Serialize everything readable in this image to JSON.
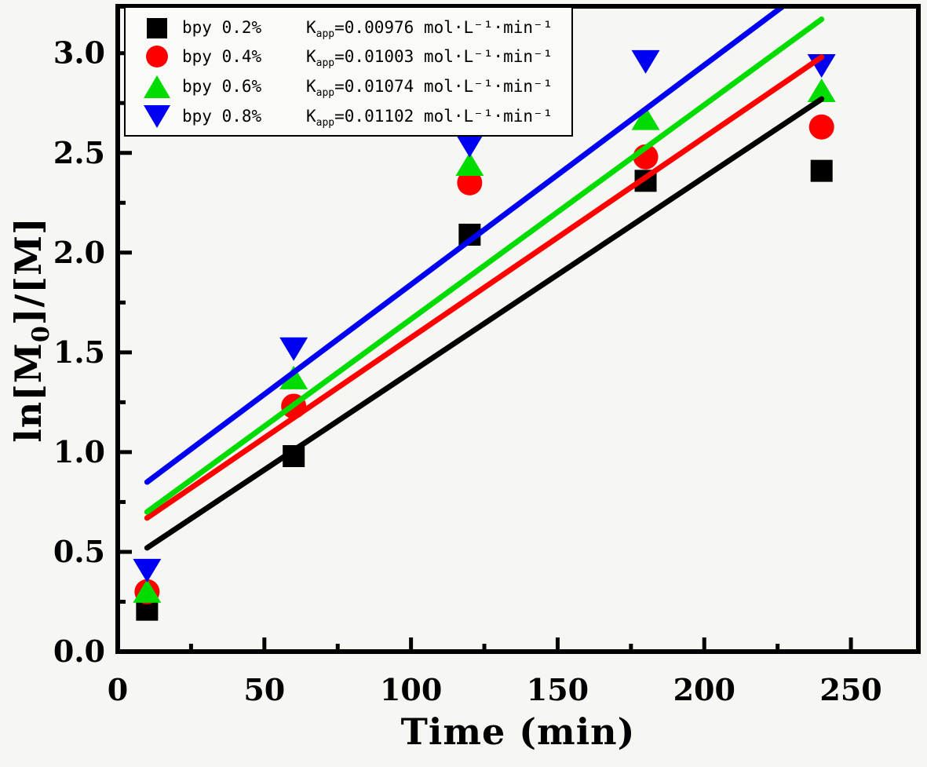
{
  "page": {
    "background": "#f6f6f3",
    "frame_color": "#000000"
  },
  "axes": {
    "x_title": "Time (min)",
    "y_title_pre": "ln[M",
    "y_title_sub": "0",
    "y_title_post": "]/[M]",
    "x_tick_labels": [
      "0",
      "50",
      "100",
      "150",
      "200",
      "250"
    ],
    "y_tick_labels": [
      "0.0",
      "0.5",
      "1.0",
      "1.5",
      "2.0",
      "2.5",
      "3.0"
    ]
  },
  "chart_data": {
    "type": "scatter",
    "title": "",
    "xlabel": "Time (min)",
    "ylabel": "ln[M0]/[M]",
    "xlim": [
      0,
      273
    ],
    "ylim": [
      0,
      3.235
    ],
    "grid": false,
    "legend_position": "top-left",
    "x_ticks_major": [
      0,
      50,
      100,
      150,
      200,
      250
    ],
    "x_ticks_minor": [
      25,
      75,
      125,
      175,
      225
    ],
    "y_ticks_major": [
      0,
      0.5,
      1.0,
      1.5,
      2.0,
      2.5,
      3.0
    ],
    "y_ticks_minor": [
      0.25,
      0.75,
      1.25,
      1.75,
      2.25,
      2.75
    ],
    "x": [
      10,
      60,
      120,
      180,
      240
    ],
    "series": [
      {
        "name": "bpy 0.2%",
        "marker": "square",
        "color": "#000000",
        "values": [
          0.21,
          0.98,
          2.09,
          2.36,
          2.41
        ],
        "kapp": "0.00976",
        "fit_line": {
          "x1": 10,
          "y1": 0.52,
          "x2": 240,
          "y2": 2.77
        }
      },
      {
        "name": "bpy 0.4%",
        "marker": "circle",
        "color": "#ff0000",
        "values": [
          0.3,
          1.23,
          2.35,
          2.48,
          2.63
        ],
        "kapp": "0.01003",
        "fit_line": {
          "x1": 10,
          "y1": 0.67,
          "x2": 240,
          "y2": 2.98
        }
      },
      {
        "name": "bpy 0.6%",
        "marker": "triangle-up",
        "color": "#00dc00",
        "values": [
          0.3,
          1.37,
          2.44,
          2.67,
          2.81
        ],
        "kapp": "0.01074",
        "fit_line": {
          "x1": 10,
          "y1": 0.7,
          "x2": 240,
          "y2": 3.17
        }
      },
      {
        "name": "bpy 0.8%",
        "marker": "triangle-down",
        "color": "#0000f0",
        "values": [
          0.41,
          1.52,
          2.54,
          2.96,
          2.94
        ],
        "kapp": "0.01102",
        "fit_line": {
          "x1": 10,
          "y1": 0.85,
          "x2": 240,
          "y2": 3.38
        }
      }
    ],
    "legend": {
      "k_name": "K",
      "k_sub": "app",
      "eq": "=",
      "units": "mol·L⁻¹·min⁻¹"
    }
  }
}
